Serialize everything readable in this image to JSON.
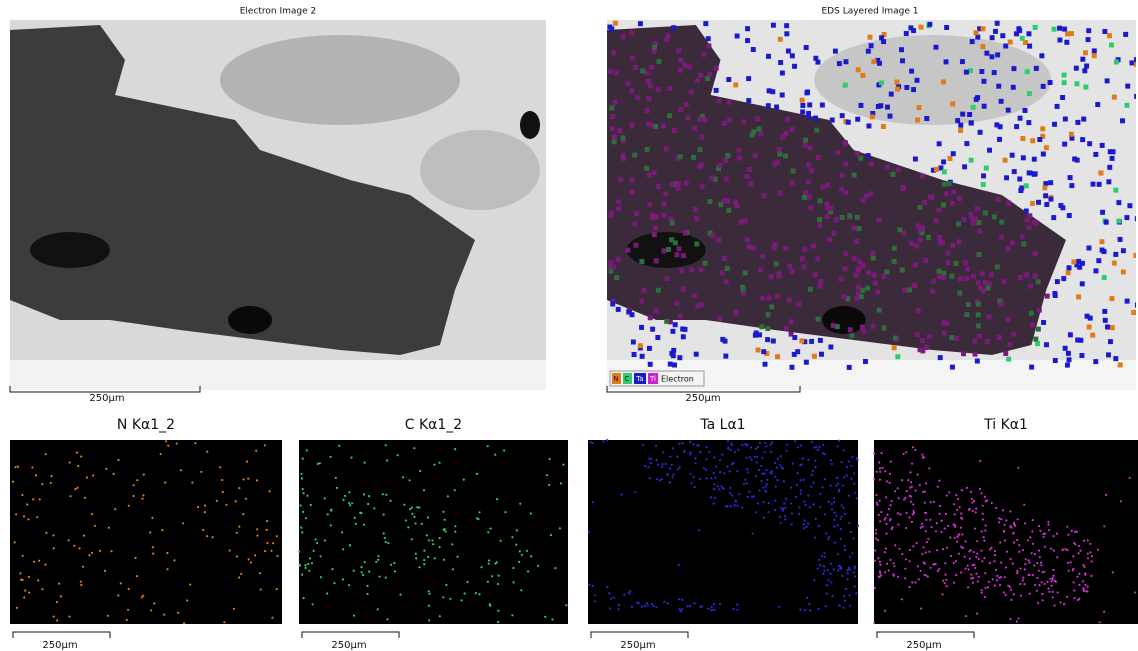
{
  "electron_image": {
    "title": "Electron Image 2",
    "scale_bar": "250µm"
  },
  "layered_image": {
    "title": "EDS Layered Image 1",
    "scale_bar": "250µm",
    "legend": [
      "N",
      "C",
      "Ta",
      "Ti",
      "Electron"
    ]
  },
  "maps": [
    {
      "title": "N Kα1_2",
      "scale_bar": "250µm"
    },
    {
      "title": "C Kα1_2",
      "scale_bar": "250µm"
    },
    {
      "title": "Ta Lα1",
      "scale_bar": "250µm"
    },
    {
      "title": "Ti Kα1",
      "scale_bar": "250µm"
    }
  ]
}
